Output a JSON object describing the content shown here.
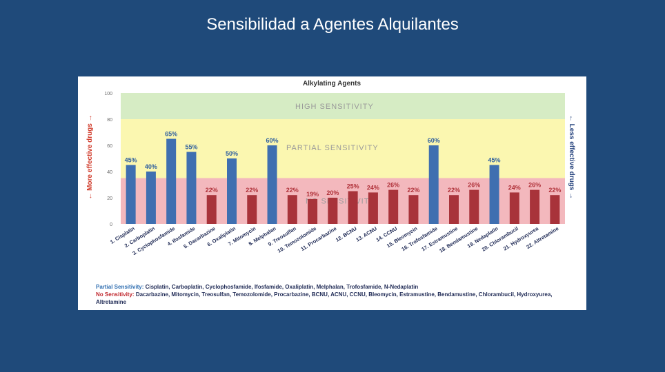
{
  "slide": {
    "title": "Sensibilidad a Agentes Alquilantes"
  },
  "chart_data": {
    "type": "bar",
    "title": "Alkylating Agents",
    "ylim": [
      0,
      100
    ],
    "yticks": [
      "0",
      "20",
      "40",
      "60",
      "80",
      "100"
    ],
    "left_axis_label": "← More effective drugs →",
    "right_axis_label": "← Less effective drugs →",
    "zones": [
      {
        "name": "HIGH SENSITIVITY",
        "from": 80,
        "to": 100,
        "color": "#d6ecc4"
      },
      {
        "name": "PARTIAL SENSITIVITY",
        "from": 35,
        "to": 80,
        "color": "#fbf7b0"
      },
      {
        "name": "NO SENSITIVITY",
        "from": 0,
        "to": 35,
        "color": "#f3b8bd"
      }
    ],
    "categories": [
      "1. Cisplatin",
      "2. Carboplatin",
      "3. Cyclophosfamide",
      "4. Ifosfamide",
      "5. Dacarbazine",
      "6. Oxaliplatin",
      "7. Mitomycin",
      "8. Melphalan",
      "9. Treosulfan",
      "10. Temozolomide",
      "11. Procarbazine",
      "12. BCNU",
      "13. ACNU",
      "14. CCNU",
      "15. Bleomycin",
      "16. Trofosfamide",
      "17. Estramustine",
      "18. Bendamustine",
      "19. Nedaplatin",
      "20. Chlorambucil",
      "21. Hydroxyurea",
      "22. Altretamine"
    ],
    "values": [
      45,
      40,
      65,
      55,
      22,
      50,
      22,
      60,
      22,
      19,
      20,
      25,
      24,
      26,
      22,
      60,
      22,
      26,
      45,
      24,
      26,
      22
    ],
    "value_labels": [
      "45%",
      "40%",
      "65%",
      "55%",
      "22%",
      "50%",
      "22%",
      "60%",
      "22%",
      "19%",
      "20%",
      "25%",
      "24%",
      "26%",
      "22%",
      "60%",
      "22%",
      "26%",
      "45%",
      "24%",
      "26%",
      "22%"
    ],
    "groups": [
      "partial",
      "partial",
      "partial",
      "partial",
      "none",
      "partial",
      "none",
      "partial",
      "none",
      "none",
      "none",
      "none",
      "none",
      "none",
      "none",
      "partial",
      "none",
      "none",
      "partial",
      "none",
      "none",
      "none"
    ],
    "group_colors": {
      "partial": "#3f6fb0",
      "none": "#a8333a"
    },
    "legend": {
      "partial_label": "Partial Sensitivity:",
      "partial_text": "Cisplatin, Carboplatin, Cyclophosfamide, Ifosfamide, Oxaliplatin, Melphalan, Trofosfamide, N-Nedaplatin",
      "none_label": "No Sensitivity:",
      "none_text": "Dacarbazine, Mitomycin, Treosulfan, Temozolomide, Procarbazine, BCNU, ACNU, CCNU, Bleomycin, Estramustine, Bendamustine, Chlorambucil, Hydroxyurea, Altretamine"
    }
  }
}
